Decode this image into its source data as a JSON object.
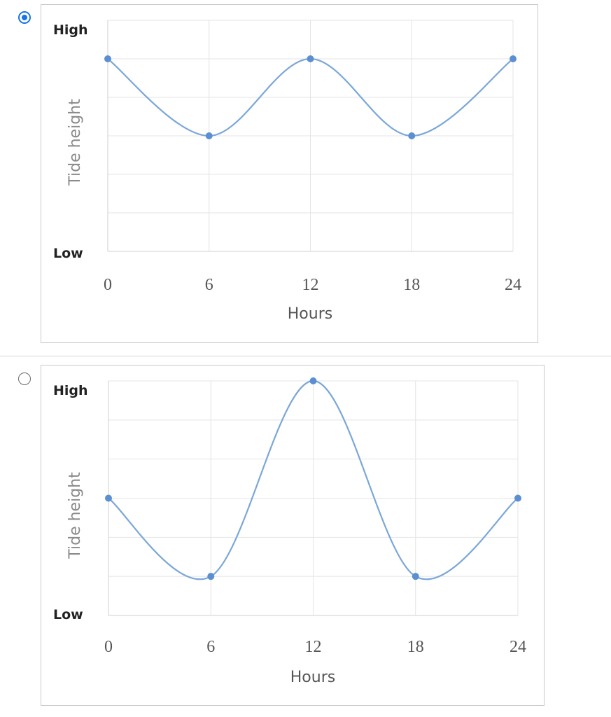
{
  "options": [
    {
      "selected": true,
      "chart_data": {
        "type": "line",
        "x": [
          0,
          6,
          12,
          18,
          24
        ],
        "values": [
          1,
          -1,
          1,
          -1,
          1
        ],
        "xlim": [
          0,
          24
        ],
        "ylim": [
          -4,
          2
        ],
        "xticks": [
          "0",
          "6",
          "12",
          "18",
          "24"
        ],
        "y_high_label": "High",
        "y_low_label": "Low",
        "ylabel": "Tide height",
        "xlabel": "Hours",
        "grid": true,
        "line_color": "#7ba7d8",
        "marker_color": "#5b8fd1"
      }
    },
    {
      "selected": false,
      "chart_data": {
        "type": "line",
        "x": [
          0,
          6,
          12,
          18,
          24
        ],
        "values": [
          0,
          -2,
          3,
          -2,
          0
        ],
        "xlim": [
          0,
          24
        ],
        "ylim": [
          -3,
          3
        ],
        "xticks": [
          "0",
          "6",
          "12",
          "18",
          "24"
        ],
        "y_high_label": "High",
        "y_low_label": "Low",
        "ylabel": "Tide height",
        "xlabel": "Hours",
        "grid": true,
        "line_color": "#7ba7d8",
        "marker_color": "#5b8fd1"
      }
    }
  ]
}
